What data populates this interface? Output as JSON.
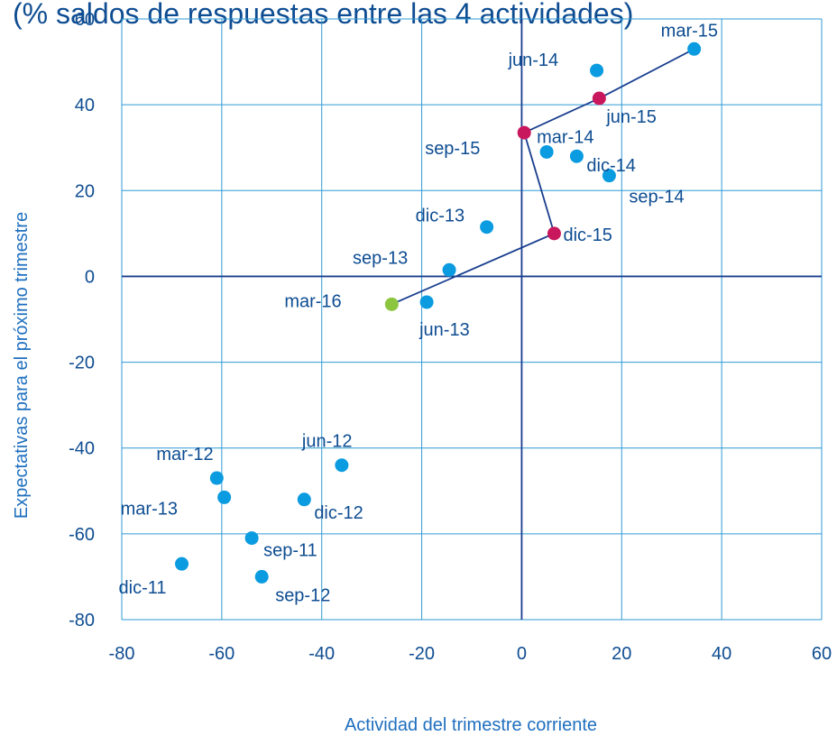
{
  "chart_data": {
    "type": "scatter",
    "title": "(% saldos de respuestas entre las 4 actividades) ",
    "xlabel": "Actividad del trimestre corriente",
    "ylabel": "Expectativas para el próximo trimestre",
    "xlim": [
      -80,
      60
    ],
    "ylim": [
      -80,
      60
    ],
    "xticks": [
      -80,
      -60,
      -40,
      -20,
      0,
      20,
      40,
      60
    ],
    "yticks": [
      -80,
      -60,
      -40,
      -20,
      0,
      20,
      40,
      60
    ],
    "grid": true,
    "colors": {
      "history": "#0a9be0",
      "recent": "#c8175d",
      "latest": "#8cc63f",
      "line": "#1a3f8f",
      "grid": "#2f9ad6",
      "axes": "#1a3f8f",
      "text": "#0e4d92"
    },
    "series": [
      {
        "group": "history",
        "points": [
          {
            "label": "dic-11",
            "x": -68,
            "y": -67
          },
          {
            "label": "mar-12",
            "x": -61,
            "y": -47
          },
          {
            "label": "jun-12",
            "x": -36,
            "y": -44
          },
          {
            "label": "sep-11",
            "x": -54,
            "y": -61
          },
          {
            "label": "sep-12",
            "x": -52,
            "y": -70
          },
          {
            "label": "dic-12",
            "x": -43.5,
            "y": -52
          },
          {
            "label": "mar-13",
            "x": -59.5,
            "y": -51.5
          },
          {
            "label": "jun-13",
            "x": -19,
            "y": -6
          },
          {
            "label": "sep-13",
            "x": -14.5,
            "y": 1.5
          },
          {
            "label": "dic-13",
            "x": -7,
            "y": 11.5
          },
          {
            "label": "mar-14",
            "x": 5,
            "y": 29
          },
          {
            "label": "jun-14",
            "x": 15,
            "y": 48
          },
          {
            "label": "sep-14",
            "x": 17.5,
            "y": 23.5
          },
          {
            "label": "dic-14",
            "x": 11,
            "y": 28
          },
          {
            "label": "mar-15",
            "x": 34.5,
            "y": 53
          }
        ]
      },
      {
        "group": "recent",
        "points": [
          {
            "label": "jun-15",
            "x": 15.5,
            "y": 41.5
          },
          {
            "label": "sep-15",
            "x": 0.5,
            "y": 33.5
          },
          {
            "label": "dic-15",
            "x": 6.5,
            "y": 10
          }
        ]
      },
      {
        "group": "latest",
        "points": [
          {
            "label": "mar-16",
            "x": -26,
            "y": -6.5
          }
        ]
      }
    ],
    "path": [
      "mar-15",
      "jun-15",
      "sep-15",
      "dic-15",
      "mar-16"
    ]
  }
}
